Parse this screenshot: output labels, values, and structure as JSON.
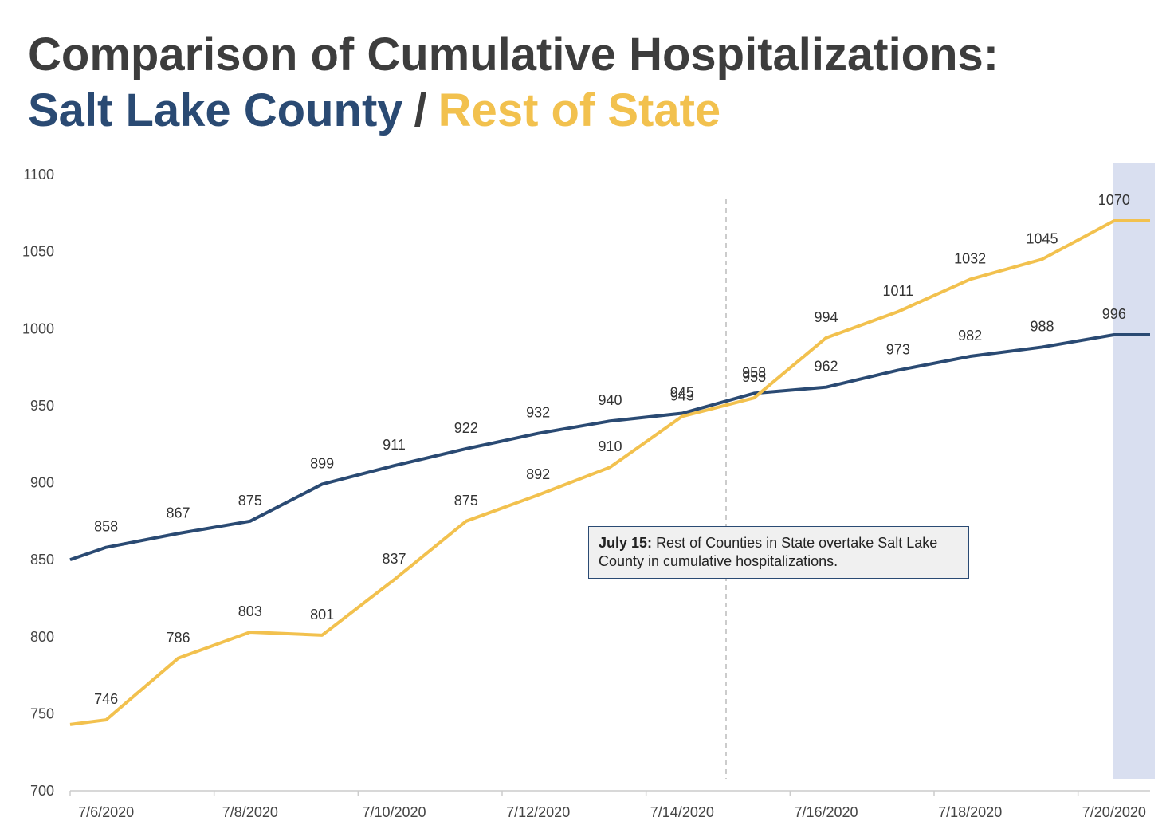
{
  "chart_data": {
    "type": "line",
    "title": "Comparison of Cumulative Hospitalizations:",
    "title_separator": "/",
    "categories": [
      null,
      "7/6/2020",
      null,
      "7/8/2020",
      null,
      "7/10/2020",
      null,
      "7/12/2020",
      null,
      "7/14/2020",
      null,
      "7/16/2020",
      null,
      "7/18/2020",
      null,
      "7/20/2020",
      null
    ],
    "series": [
      {
        "name": "Salt Lake County",
        "color": "#2a4a73",
        "values": [
          850,
          858,
          867,
          875,
          899,
          911,
          922,
          932,
          940,
          945,
          958,
          962,
          973,
          982,
          988,
          996,
          996
        ],
        "value_labels": [
          null,
          "858",
          "867",
          "875",
          "899",
          "911",
          "922",
          "932",
          "940",
          "945",
          "958",
          "962",
          "973",
          "982",
          "988",
          "996",
          null
        ]
      },
      {
        "name": "Rest of State",
        "color": "#f2c14e",
        "values": [
          743,
          746,
          786,
          803,
          801,
          837,
          875,
          892,
          910,
          943,
          955,
          994,
          1011,
          1032,
          1045,
          1070,
          1070
        ],
        "value_labels": [
          null,
          "746",
          "786",
          "803",
          "801",
          "837",
          "875",
          "892",
          "910",
          "943",
          "955",
          "994",
          "1011",
          "1032",
          "1045",
          "1070",
          null
        ]
      }
    ],
    "ylim": [
      700,
      1100
    ],
    "yticks": [
      700,
      750,
      800,
      850,
      900,
      950,
      1000,
      1050,
      1100
    ],
    "annotation": {
      "label": "July 15:",
      "text": "Rest of Counties in State overtake Salt Lake County in cumulative hospitalizations."
    }
  }
}
